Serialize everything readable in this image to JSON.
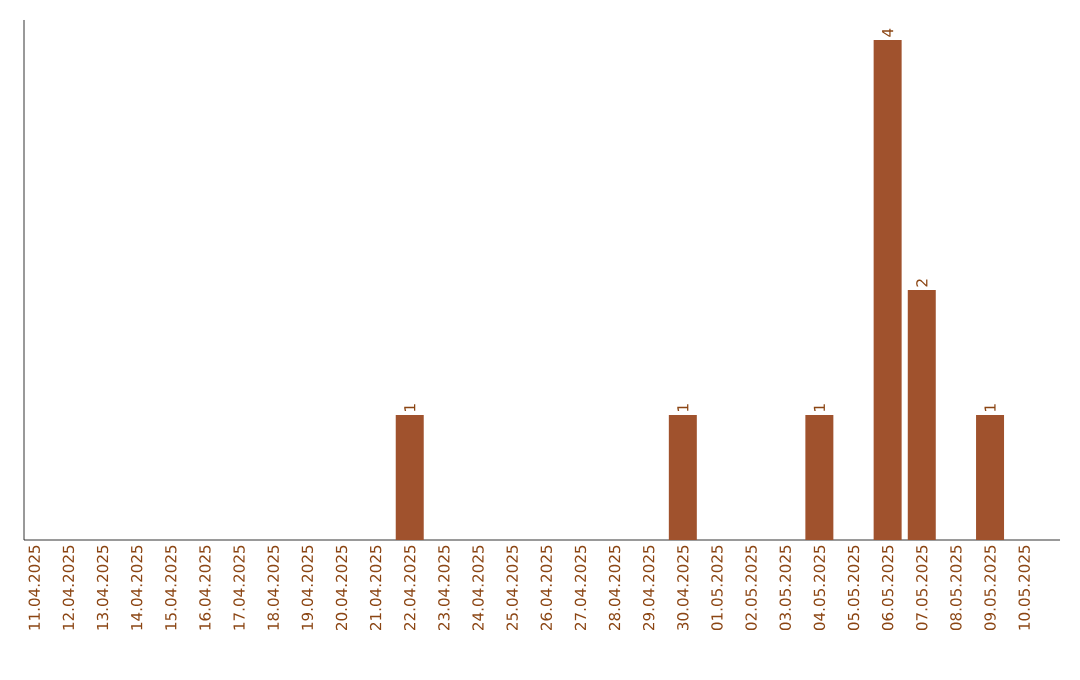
{
  "chart_data": {
    "type": "bar",
    "categories": [
      "11.04.2025",
      "12.04.2025",
      "13.04.2025",
      "14.04.2025",
      "15.04.2025",
      "16.04.2025",
      "17.04.2025",
      "18.04.2025",
      "19.04.2025",
      "20.04.2025",
      "21.04.2025",
      "22.04.2025",
      "23.04.2025",
      "24.04.2025",
      "25.04.2025",
      "26.04.2025",
      "27.04.2025",
      "28.04.2025",
      "29.04.2025",
      "30.04.2025",
      "01.05.2025",
      "02.05.2025",
      "03.05.2025",
      "04.05.2025",
      "05.05.2025",
      "06.05.2025",
      "07.05.2025",
      "08.05.2025",
      "09.05.2025",
      "10.05.2025"
    ],
    "values": [
      0,
      0,
      0,
      0,
      0,
      0,
      0,
      0,
      0,
      0,
      0,
      1,
      0,
      0,
      0,
      0,
      0,
      0,
      0,
      1,
      0,
      0,
      0,
      1,
      0,
      4,
      2,
      0,
      1,
      0
    ],
    "value_labels": [
      null,
      null,
      null,
      null,
      null,
      null,
      null,
      null,
      null,
      null,
      null,
      "1",
      null,
      null,
      null,
      null,
      null,
      null,
      null,
      "1",
      null,
      null,
      null,
      "1",
      null,
      "4",
      "2",
      null,
      "1",
      null
    ],
    "color": "#a0522d"
  }
}
